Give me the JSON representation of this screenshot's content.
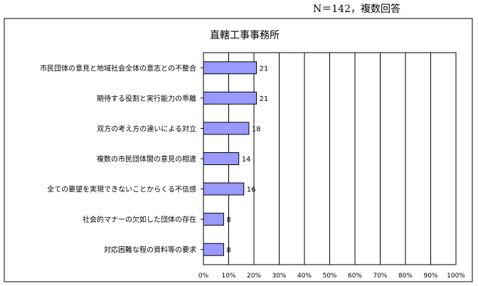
{
  "note": "N＝142，複数回答",
  "chart_data": {
    "type": "bar",
    "orientation": "horizontal",
    "title": "直轄工事事務所",
    "categories": [
      "市民団体の意見と地域社会全体の意志との不整合",
      "期待する役割と実行能力の乖離",
      "双方の考え方の違いによる対立",
      "複数の市民団体間の意見の相違",
      "全ての要望を実現できないことからくる不信感",
      "社会的マナーの欠如した団体の存在",
      "対応困難な程の資料等の要求"
    ],
    "values": [
      21,
      21,
      18,
      14,
      16,
      8,
      8
    ],
    "x_ticks": [
      "0%",
      "10%",
      "20%",
      "30%",
      "40%",
      "50%",
      "60%",
      "70%",
      "80%",
      "90%",
      "100%"
    ],
    "xlim": [
      0,
      100
    ],
    "grid": true,
    "colors": {
      "bar_fill": "#9999ff",
      "bar_stroke": "#000000",
      "grid": "#000000"
    }
  }
}
